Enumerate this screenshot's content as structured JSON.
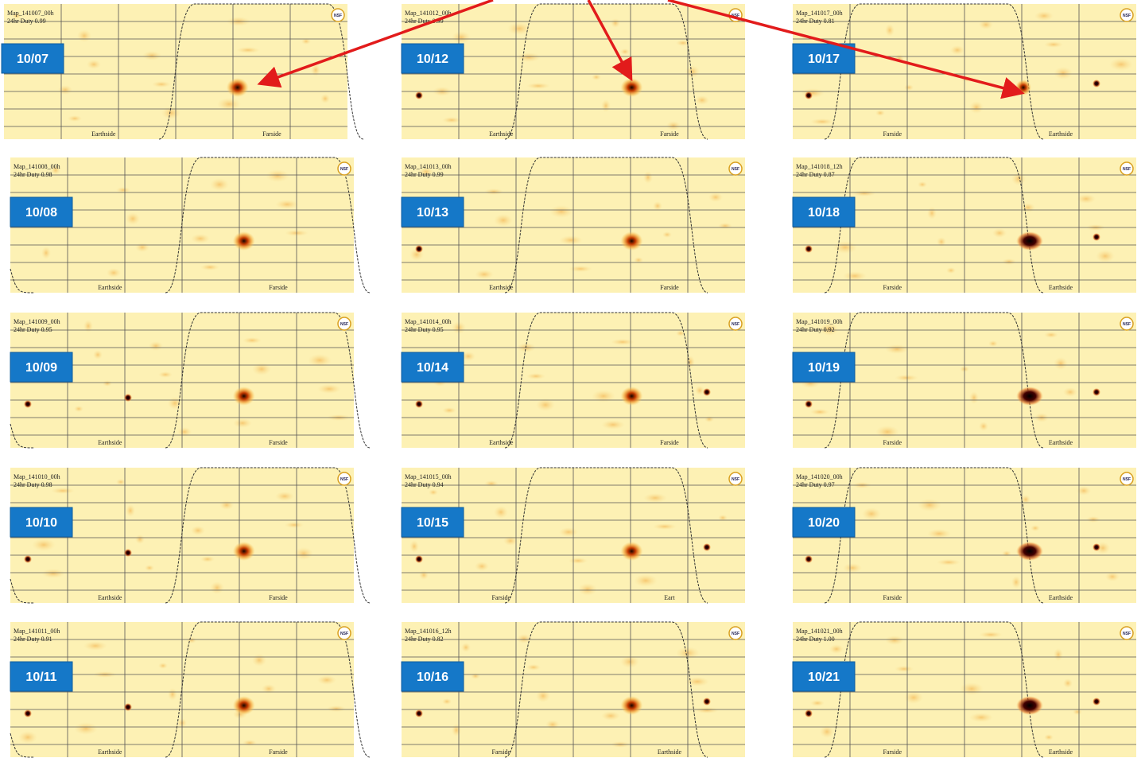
{
  "panels": [
    {
      "date": "10/07",
      "map": "Map_141007_00h",
      "duty": "24hr Duty 0.99",
      "left": "Earthside",
      "right": "Farside"
    },
    {
      "date": "10/08",
      "map": "Map_141008_00h",
      "duty": "24hr Duty 0.98",
      "left": "Earthside",
      "right": "Farside"
    },
    {
      "date": "10/09",
      "map": "Map_141009_00h",
      "duty": "24hr Duty 0.95",
      "left": "Earthside",
      "right": "Farside"
    },
    {
      "date": "10/10",
      "map": "Map_141010_00h",
      "duty": "24hr Duty 0.98",
      "left": "Earthside",
      "right": "Farside"
    },
    {
      "date": "10/11",
      "map": "Map_141011_00h",
      "duty": "24hr Duty 0.91",
      "left": "Earthside",
      "right": "Farside"
    },
    {
      "date": "10/12",
      "map": "Map_141012_00h",
      "duty": "24hr Duty 0.99",
      "left": "Earthside",
      "right": "Farside"
    },
    {
      "date": "10/13",
      "map": "Map_141013_00h",
      "duty": "24hr Duty 0.99",
      "left": "Earthside",
      "right": "Farside"
    },
    {
      "date": "10/14",
      "map": "Map_141014_00h",
      "duty": "24hr Duty 0.95",
      "left": "Earthside",
      "right": "Farside"
    },
    {
      "date": "10/15",
      "map": "Map_141015_00h",
      "duty": "24hr Duty 0.94",
      "left": "Farside",
      "right": "Eart"
    },
    {
      "date": "10/16",
      "map": "Map_141016_12h",
      "duty": "24hr Duty 0.82",
      "left": "Farside",
      "right": "Earthside"
    },
    {
      "date": "10/17",
      "map": "Map_141017_00h",
      "duty": "24hr Duty 0.81",
      "left": "Farside",
      "right": "Earthside"
    },
    {
      "date": "10/18",
      "map": "Map_141018_12h",
      "duty": "24hr Duty 0.87",
      "left": "Farside",
      "right": "Earthside"
    },
    {
      "date": "10/19",
      "map": "Map_141019_00h",
      "duty": "24hr Duty 0.92",
      "left": "Farside",
      "right": "Earthside"
    },
    {
      "date": "10/20",
      "map": "Map_141020_00h",
      "duty": "24hr Duty 0.97",
      "left": "Farside",
      "right": "Earthside"
    },
    {
      "date": "10/21",
      "map": "Map_141021_00h",
      "duty": "24hr Duty 1.00",
      "left": "Farside",
      "right": "Earthside"
    }
  ],
  "logo": "NSF"
}
